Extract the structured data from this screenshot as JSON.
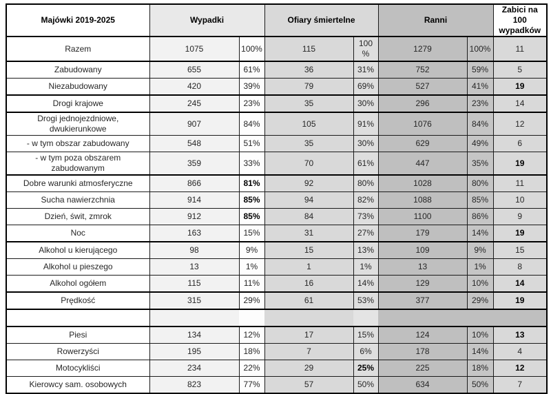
{
  "table": {
    "header": {
      "col1": "Majówki 2019-2025",
      "col2": "Wypadki",
      "col3": "Ofiary śmiertelne",
      "col4": "Ranni",
      "col5": "Zabici na 100 wypadków"
    },
    "columns": [
      "label",
      "wypadki_n",
      "wypadki_pct",
      "ofiary_n",
      "ofiary_pct",
      "ranni_n",
      "ranni_pct",
      "zabici_na_100"
    ],
    "rows": [
      {
        "label": "Razem",
        "cells": [
          "1075",
          "100%",
          "115",
          "100 %",
          "1279",
          "100%",
          "11"
        ],
        "bold": [],
        "thick": true,
        "tall": true
      },
      {
        "label": "Zabudowany",
        "cells": [
          "655",
          "61%",
          "36",
          "31%",
          "752",
          "59%",
          "5"
        ],
        "bold": [],
        "thick": false
      },
      {
        "label": "Niezabudowany",
        "cells": [
          "420",
          "39%",
          "79",
          "69%",
          "527",
          "41%",
          "19"
        ],
        "bold": [
          6
        ],
        "thick": true
      },
      {
        "label": "Drogi krajowe",
        "cells": [
          "245",
          "23%",
          "35",
          "30%",
          "296",
          "23%",
          "14"
        ],
        "bold": [],
        "thick": true
      },
      {
        "label": "Drogi jednojezdniowe, dwukierunkowe",
        "cells": [
          "907",
          "84%",
          "105",
          "91%",
          "1076",
          "84%",
          "12"
        ],
        "bold": [],
        "thick": false
      },
      {
        "label": "- w tym obszar zabudowany",
        "cells": [
          "548",
          "51%",
          "35",
          "30%",
          "629",
          "49%",
          "6"
        ],
        "bold": [],
        "thick": false
      },
      {
        "label": "- w tym poza obszarem zabudowanym",
        "cells": [
          "359",
          "33%",
          "70",
          "61%",
          "447",
          "35%",
          "19"
        ],
        "bold": [
          6
        ],
        "thick": true
      },
      {
        "label": "Dobre warunki atmosferyczne",
        "cells": [
          "866",
          "81%",
          "92",
          "80%",
          "1028",
          "80%",
          "11"
        ],
        "bold": [
          1
        ],
        "thick": false
      },
      {
        "label": "Sucha nawierzchnia",
        "cells": [
          "914",
          "85%",
          "94",
          "82%",
          "1088",
          "85%",
          "10"
        ],
        "bold": [
          1
        ],
        "thick": false
      },
      {
        "label": "Dzień, świt, zmrok",
        "cells": [
          "912",
          "85%",
          "84",
          "73%",
          "1100",
          "86%",
          "9"
        ],
        "bold": [
          1
        ],
        "thick": false
      },
      {
        "label": "Noc",
        "cells": [
          "163",
          "15%",
          "31",
          "27%",
          "179",
          "14%",
          "19"
        ],
        "bold": [
          6
        ],
        "thick": true
      },
      {
        "label": "Alkohol u kierującego",
        "cells": [
          "98",
          "9%",
          "15",
          "13%",
          "109",
          "9%",
          "15"
        ],
        "bold": [],
        "thick": false
      },
      {
        "label": "Alkohol u pieszego",
        "cells": [
          "13",
          "1%",
          "1",
          "1%",
          "13",
          "1%",
          "8"
        ],
        "bold": [],
        "thick": false
      },
      {
        "label": "Alkohol ogółem",
        "cells": [
          "115",
          "11%",
          "16",
          "14%",
          "129",
          "10%",
          "14"
        ],
        "bold": [
          6
        ],
        "thick": true
      },
      {
        "label": "Prędkość",
        "cells": [
          "315",
          "29%",
          "61",
          "53%",
          "377",
          "29%",
          "19"
        ],
        "bold": [
          6
        ],
        "thick": true
      },
      {
        "label": "",
        "cells": [
          "",
          "",
          "",
          "",
          "",
          "",
          ""
        ],
        "bold": [],
        "thick": true,
        "empty": true
      },
      {
        "label": "Piesi",
        "cells": [
          "134",
          "12%",
          "17",
          "15%",
          "124",
          "10%",
          "13"
        ],
        "bold": [
          6
        ],
        "thick": false
      },
      {
        "label": "Rowerzyści",
        "cells": [
          "195",
          "18%",
          "7",
          "6%",
          "178",
          "14%",
          "4"
        ],
        "bold": [],
        "thick": false
      },
      {
        "label": "Motocykliści",
        "cells": [
          "234",
          "22%",
          "29",
          "25%",
          "225",
          "18%",
          "12"
        ],
        "bold": [
          3,
          6
        ],
        "thick": false
      },
      {
        "label": "Kierowcy sam. osobowych",
        "cells": [
          "823",
          "77%",
          "57",
          "50%",
          "634",
          "50%",
          "7"
        ],
        "bold": [],
        "thick": false
      }
    ],
    "colors": {
      "wypadki_fill": "#f2f2f2",
      "ofiary_fill": "#d9d9d9",
      "ranni_fill": "#bfbfbf",
      "zabici_fill": "#d9d9d9",
      "header_white": "#ffffff",
      "border": "#000000"
    }
  }
}
